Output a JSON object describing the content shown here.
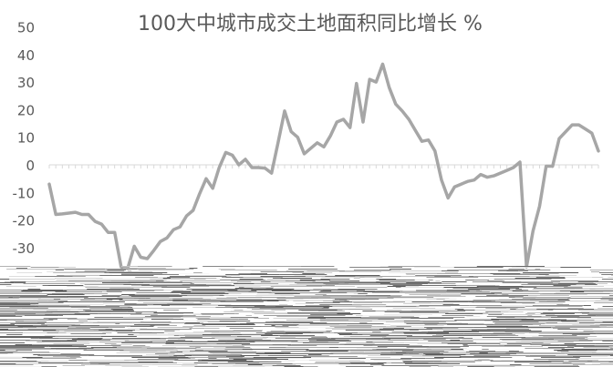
{
  "chart_data": {
    "type": "line",
    "title": "100大中城市成交土地面积同比增长 %",
    "xlabel": "",
    "ylabel": "",
    "ylim": [
      -40,
      50
    ],
    "y_ticks": [
      50,
      40,
      30,
      20,
      10,
      0,
      -10,
      -20,
      -30
    ],
    "grid": false,
    "legend": "none",
    "series_color": "#a6a6a6",
    "axis_color": "#d9d9d9",
    "text_color": "#595959",
    "series": [
      {
        "values": [
          -7,
          -18,
          -17.8,
          -17.5,
          -17.2,
          -18,
          -18,
          -20.5,
          -21.5,
          -24.5,
          -24.5,
          -37,
          -37.5,
          -29.5,
          -33.5,
          -34,
          -31,
          -27.8,
          -26.5,
          -23.5,
          -22.5,
          -18.5,
          -16.5,
          -10.5,
          -5,
          -8.5,
          -1,
          4.5,
          3.5,
          0,
          2,
          -1,
          -1,
          -1.2,
          -3,
          8,
          19.5,
          12,
          10,
          4,
          6,
          8,
          6.5,
          10.5,
          15.5,
          16.5,
          13.5,
          29.5,
          15.5,
          31,
          30,
          36.5,
          28,
          22,
          19.5,
          16.5,
          12.5,
          8.5,
          9,
          5,
          -5.5,
          -12,
          -8,
          -7,
          -6,
          -5.5,
          -3.5,
          -4.5,
          -4,
          -3,
          -2,
          -1,
          1,
          -37,
          -24,
          -15,
          -0.5,
          -0.5,
          9.5,
          12,
          14.5,
          14.5,
          13,
          11.5,
          5
        ]
      }
    ]
  }
}
